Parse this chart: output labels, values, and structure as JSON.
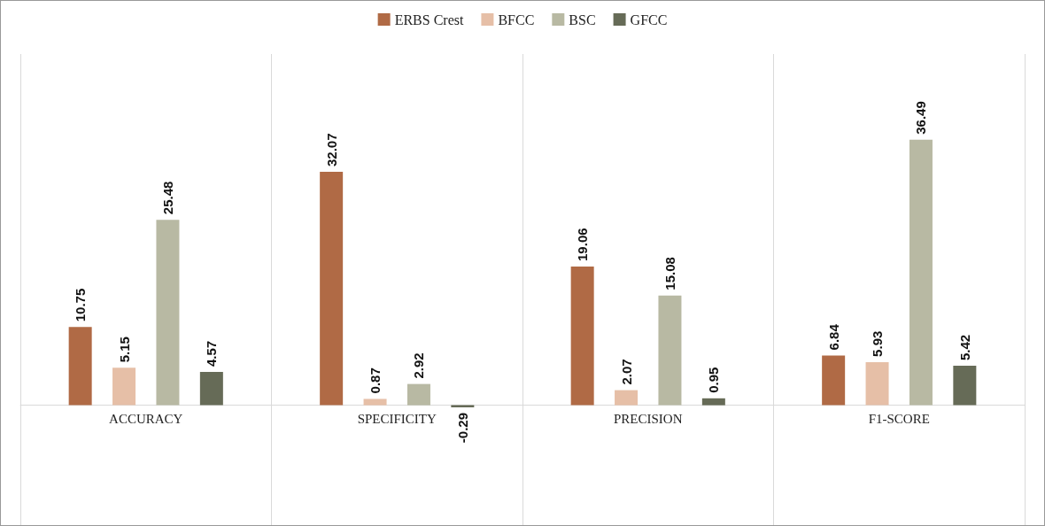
{
  "chart_data": {
    "type": "bar",
    "categories": [
      "ACCURACY",
      "SPECIFICITY",
      "PRECISION",
      "F1-SCORE"
    ],
    "series": [
      {
        "name": "ERBS Crest",
        "color": "#b06a45",
        "values": [
          10.75,
          32.07,
          19.06,
          6.84
        ]
      },
      {
        "name": "BFCC",
        "color": "#e6bfa7",
        "values": [
          5.15,
          0.87,
          2.07,
          5.93
        ]
      },
      {
        "name": "BSC",
        "color": "#b8b9a3",
        "values": [
          25.48,
          2.92,
          15.08,
          36.49
        ]
      },
      {
        "name": "GFCC",
        "color": "#666b57",
        "values": [
          4.57,
          -0.29,
          0.95,
          5.42
        ]
      }
    ],
    "data_labels": true,
    "grid": "x",
    "legend": "top",
    "tick_labels": "x"
  }
}
